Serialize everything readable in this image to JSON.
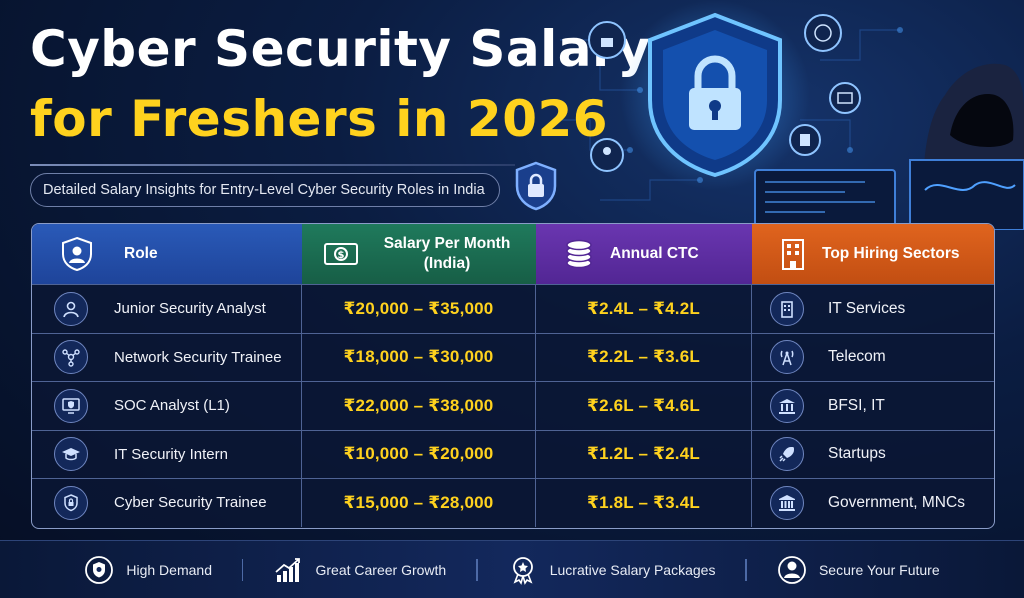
{
  "header": {
    "title_line1": "Cyber Security Salary",
    "title_line2": "for Freshers in 2026",
    "subtitle": "Detailed Salary Insights for Entry-Level Cyber Security Roles in India"
  },
  "table": {
    "columns": [
      {
        "label": "Role",
        "icon": "user-shield-icon",
        "color": "#2a5ab8"
      },
      {
        "label": "Salary Per Month (India)",
        "icon": "cash-icon",
        "color": "#1f7a5c"
      },
      {
        "label": "Annual CTC",
        "icon": "coins-icon",
        "color": "#6a36b0"
      },
      {
        "label": "Top Hiring Sectors",
        "icon": "building-icon",
        "color": "#e0641e"
      }
    ],
    "rows": [
      {
        "role": "Junior Security Analyst",
        "role_icon": "analyst-icon",
        "salary": "₹20,000 – ₹35,000",
        "ctc": "₹2.4L – ₹4.2L",
        "sector": "IT Services",
        "sector_icon": "office-building-icon"
      },
      {
        "role": "Network Security Trainee",
        "role_icon": "network-icon",
        "salary": "₹18,000 – ₹30,000",
        "ctc": "₹2.2L – ₹3.6L",
        "sector": "Telecom",
        "sector_icon": "tower-icon"
      },
      {
        "role": "SOC Analyst (L1)",
        "role_icon": "monitor-shield-icon",
        "salary": "₹22,000 – ₹38,000",
        "ctc": "₹2.6L – ₹4.6L",
        "sector": "BFSI, IT",
        "sector_icon": "bank-icon"
      },
      {
        "role": "IT Security Intern",
        "role_icon": "graduation-cap-icon",
        "salary": "₹10,000 – ₹20,000",
        "ctc": "₹1.2L – ₹2.4L",
        "sector": "Startups",
        "sector_icon": "rocket-icon"
      },
      {
        "role": "Cyber Security Trainee",
        "role_icon": "lock-shield-icon",
        "salary": "₹15,000 – ₹28,000",
        "ctc": "₹1.8L – ₹3.4L",
        "sector": "Government, MNCs",
        "sector_icon": "government-icon"
      }
    ]
  },
  "footer": {
    "items": [
      {
        "label": "High Demand",
        "icon": "shield-icon"
      },
      {
        "label": "Great Career Growth",
        "icon": "growth-chart-icon"
      },
      {
        "label": "Lucrative Salary Packages",
        "icon": "award-icon"
      },
      {
        "label": "Secure Your Future",
        "icon": "person-icon"
      }
    ]
  },
  "colors": {
    "accent_yellow": "#ffd21e",
    "background": "#0b1d42"
  }
}
